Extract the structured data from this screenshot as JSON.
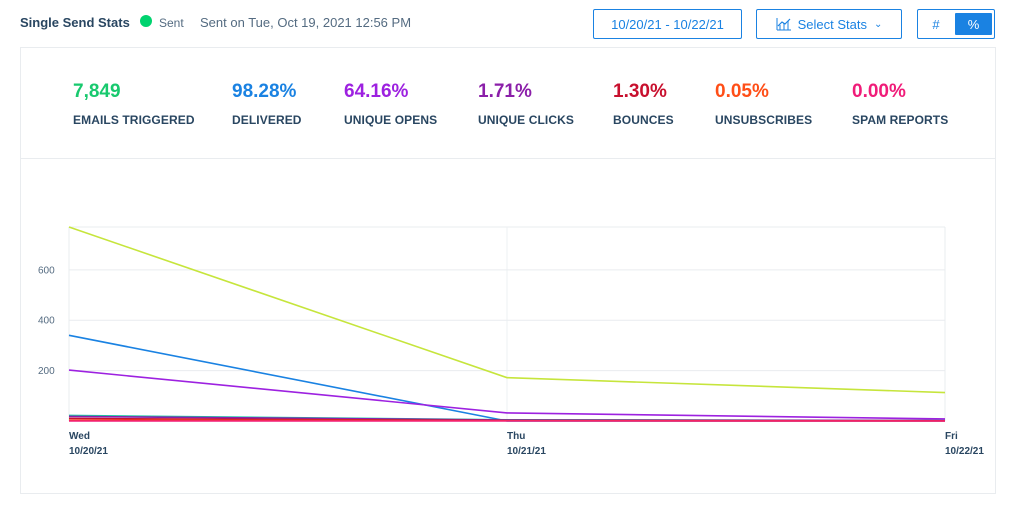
{
  "header": {
    "title": "Single Send Stats",
    "status": "Sent",
    "status_color": "#00d36f",
    "sent_on": "Sent on Tue, Oct 19, 2021 12:56 PM",
    "date_range": "10/20/21 - 10/22/21",
    "select_stats": "Select Stats",
    "toggle_hash": "#",
    "toggle_pct": "%"
  },
  "stats": [
    {
      "value": "7,849",
      "label": "EMAILS TRIGGERED",
      "color": "#18c96e"
    },
    {
      "value": "98.28%",
      "label": "DELIVERED",
      "color": "#1a82e2"
    },
    {
      "value": "64.16%",
      "label": "UNIQUE OPENS",
      "color": "#9d21e0"
    },
    {
      "value": "1.71%",
      "label": "UNIQUE CLICKS",
      "color": "#8b1fa9"
    },
    {
      "value": "1.30%",
      "label": "BOUNCES",
      "color": "#c8102e"
    },
    {
      "value": "0.05%",
      "label": "UNSUBSCRIBES",
      "color": "#ff4e17"
    },
    {
      "value": "0.00%",
      "label": "SPAM REPORTS",
      "color": "#f01c79"
    }
  ],
  "chart_data": {
    "type": "line",
    "x": [
      "Wed|10/20/21",
      "Thu|10/21/21",
      "Fri|10/22/21"
    ],
    "x_ticks": [
      {
        "day": "Wed",
        "date": "10/20/21"
      },
      {
        "day": "Thu",
        "date": "10/21/21"
      },
      {
        "day": "Fri",
        "date": "10/22/21"
      }
    ],
    "y_ticks": [
      200,
      400,
      600
    ],
    "ylim": [
      0,
      770
    ],
    "grid": true,
    "series": [
      {
        "color": "#c6e53c",
        "values": [
          770,
          172,
          113
        ]
      },
      {
        "color": "#1a82e2",
        "values": [
          340,
          0,
          0
        ]
      },
      {
        "color": "#9d21e0",
        "values": [
          202,
          32,
          8
        ]
      },
      {
        "color": "#18c9a4",
        "values": [
          22,
          5,
          2
        ]
      },
      {
        "color": "#8b1fa9",
        "values": [
          18,
          4,
          2
        ]
      },
      {
        "color": "#c8102e",
        "values": [
          10,
          2,
          1
        ]
      },
      {
        "color": "#ff4e17",
        "values": [
          3,
          1,
          0
        ]
      },
      {
        "color": "#f01c79",
        "values": [
          0,
          0,
          0
        ]
      }
    ]
  }
}
